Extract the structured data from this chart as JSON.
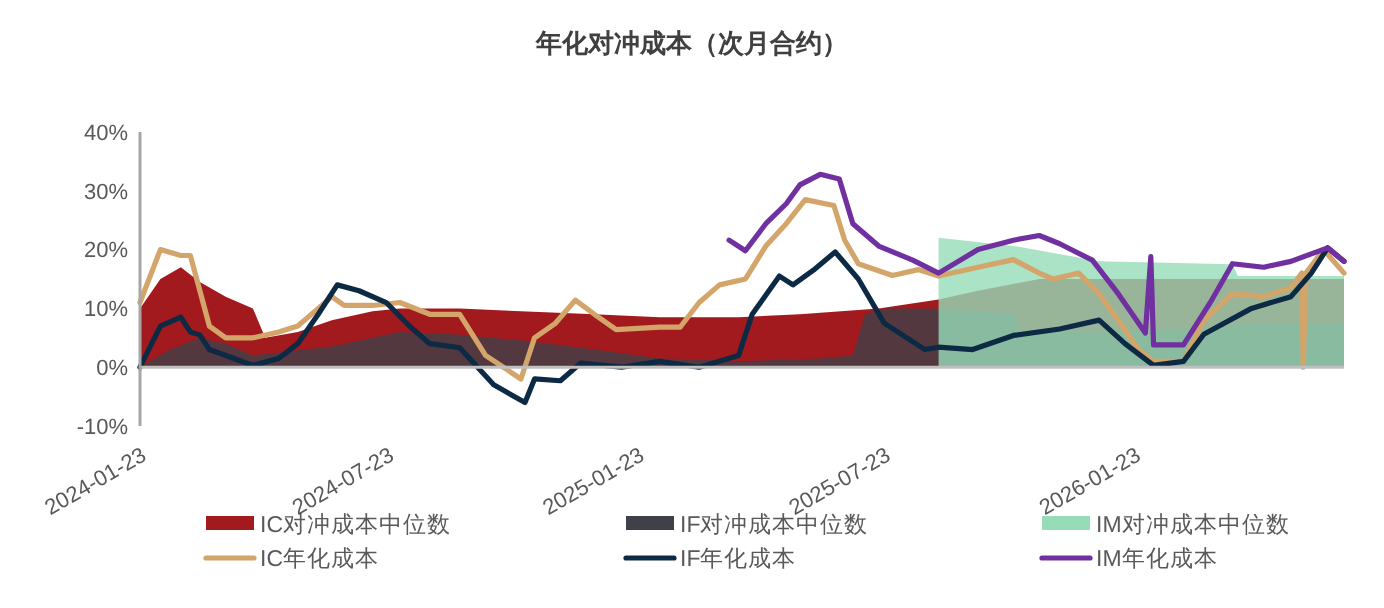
{
  "chart_data": {
    "type": "line",
    "title": "年化对冲成本（次月合约）",
    "xlim": [
      "2024-01-23",
      "2026-06-26"
    ],
    "xticks": [
      "2024-01-23",
      "2024-07-23",
      "2025-01-23",
      "2025-07-23",
      "2026-01-23"
    ],
    "ylim": [
      -10,
      40
    ],
    "yticks": [
      {
        "value": -10,
        "label": "-10%"
      },
      {
        "value": 0,
        "label": "0%"
      },
      {
        "value": 10,
        "label": "10%"
      },
      {
        "value": 20,
        "label": "20%"
      },
      {
        "value": 30,
        "label": "30%"
      },
      {
        "value": 40,
        "label": "40%"
      }
    ],
    "legend": "bottom",
    "line_style": "solid",
    "marker": "none",
    "series": [
      {
        "name": "IC对冲成本中位数",
        "type": "area",
        "color": "#a31a1e",
        "x": [
          "2024-01-23",
          "2024-02-07",
          "2024-02-22",
          "2024-03-07",
          "2024-03-26",
          "2024-04-15",
          "2024-04-24",
          "2024-05-18",
          "2024-06-12",
          "2024-07-12",
          "2024-08-01",
          "2024-09-14",
          "2024-10-29",
          "2024-12-22",
          "2025-02-08",
          "2025-04-07",
          "2025-05-22",
          "2025-07-19",
          "2025-09-01",
          "2025-09-30",
          "2025-11-14",
          "2026-01-11",
          "2026-03-11",
          "2026-05-23",
          "2026-06-26"
        ],
        "values": [
          10,
          15,
          17,
          14.5,
          12,
          10,
          5,
          6,
          8,
          9.5,
          10,
          10,
          9.5,
          9,
          8.5,
          8.5,
          9,
          10,
          11.5,
          13,
          15,
          15,
          15,
          15,
          15
        ]
      },
      {
        "name": "IF对冲成本中位数",
        "type": "area",
        "color": "#3f4048",
        "x": [
          "2024-01-23",
          "2024-02-14",
          "2024-03-07",
          "2024-03-26",
          "2024-04-15",
          "2024-05-04",
          "2024-06-12",
          "2024-07-12",
          "2024-08-01",
          "2024-09-14",
          "2024-11-01",
          "2024-12-22",
          "2025-02-08",
          "2025-04-07",
          "2025-06-06",
          "2025-06-30",
          "2025-07-09",
          "2025-07-23",
          "2025-09-01",
          "2025-10-26",
          "2025-10-30",
          "2025-12-28",
          "2026-03-11",
          "2026-04-19",
          "2026-06-26"
        ],
        "values": [
          0,
          3,
          5,
          4,
          2,
          2.5,
          3.5,
          5,
          6,
          5.5,
          4.5,
          3,
          1.5,
          1,
          1.5,
          2,
          9,
          10,
          10,
          9,
          6,
          6,
          6.5,
          7.5,
          7.5
        ]
      },
      {
        "name": "IM对冲成本中位数",
        "type": "area",
        "color": "#96dcb8",
        "x": [
          "2025-09-01",
          "2025-10-30",
          "2025-12-28",
          "2026-04-05",
          "2026-04-09",
          "2026-06-26"
        ],
        "values": [
          22,
          20.5,
          18,
          17.5,
          15.5,
          15.5
        ]
      },
      {
        "name": "IC年化成本",
        "color": "#d4a56a",
        "x": [
          "2024-01-23",
          "2024-02-07",
          "2024-02-22",
          "2024-02-29",
          "2024-03-07",
          "2024-03-14",
          "2024-03-26",
          "2024-04-15",
          "2024-05-04",
          "2024-05-18",
          "2024-06-02",
          "2024-06-12",
          "2024-06-21",
          "2024-07-12",
          "2024-08-01",
          "2024-08-23",
          "2024-09-14",
          "2024-10-03",
          "2024-10-29",
          "2024-11-08",
          "2024-11-23",
          "2024-12-08",
          "2024-12-22",
          "2025-01-07",
          "2025-02-08",
          "2025-02-23",
          "2025-03-09",
          "2025-03-24",
          "2025-04-12",
          "2025-04-27",
          "2025-05-12",
          "2025-05-26",
          "2025-06-16",
          "2025-06-24",
          "2025-07-04",
          "2025-07-29",
          "2025-08-17",
          "2025-09-01",
          "2025-09-30",
          "2025-10-26",
          "2025-11-14",
          "2025-11-24",
          "2025-12-13",
          "2025-12-28",
          "2026-01-11",
          "2026-01-26",
          "2026-02-06",
          "2026-02-28",
          "2026-03-15",
          "2026-04-05",
          "2026-04-28",
          "2026-05-18",
          "2026-05-26",
          "2026-05-27",
          "2026-05-29",
          "2026-06-11",
          "2026-06-26"
        ],
        "values": [
          11,
          20,
          19,
          19,
          13,
          7,
          5,
          5,
          6,
          7,
          10,
          12,
          10.5,
          10.5,
          11,
          9,
          9,
          2,
          -2,
          5,
          7.4,
          11.4,
          9,
          6.4,
          6.8,
          6.8,
          11,
          14,
          15,
          20.6,
          24.4,
          28.5,
          27.5,
          21.6,
          17.6,
          15.6,
          16.6,
          15.5,
          17,
          18.3,
          16,
          15,
          16,
          12.5,
          8,
          3,
          1,
          1,
          8,
          12.5,
          12,
          13.5,
          16,
          0,
          16,
          20,
          16
        ]
      },
      {
        "name": "IF年化成本",
        "color": "#0d2a45",
        "x": [
          "2024-01-23",
          "2024-02-07",
          "2024-02-22",
          "2024-02-29",
          "2024-03-07",
          "2024-03-14",
          "2024-03-26",
          "2024-04-15",
          "2024-05-04",
          "2024-05-18",
          "2024-06-02",
          "2024-06-16",
          "2024-07-02",
          "2024-07-22",
          "2024-08-08",
          "2024-08-23",
          "2024-09-14",
          "2024-10-09",
          "2024-11-01",
          "2024-11-08",
          "2024-11-27",
          "2024-12-12",
          "2025-01-11",
          "2025-02-08",
          "2025-03-09",
          "2025-04-07",
          "2025-04-17",
          "2025-05-07",
          "2025-05-17",
          "2025-06-01",
          "2025-06-17",
          "2025-07-04",
          "2025-07-23",
          "2025-08-22",
          "2025-09-01",
          "2025-09-26",
          "2025-10-26",
          "2025-11-29",
          "2025-12-28",
          "2026-01-16",
          "2026-02-06",
          "2026-02-28",
          "2026-03-15",
          "2026-04-19",
          "2026-05-18",
          "2026-06-02",
          "2026-06-14",
          "2026-06-26"
        ],
        "values": [
          0,
          7,
          8.5,
          6,
          5.5,
          3,
          2,
          0.3,
          1.5,
          4,
          9,
          14,
          13,
          11,
          7,
          4,
          3.3,
          -3,
          -6,
          -2,
          -2.3,
          0.7,
          0,
          1,
          0,
          2,
          9,
          15.5,
          14,
          16.5,
          19.6,
          15,
          7.5,
          3,
          3.4,
          3,
          5.4,
          6.5,
          8,
          4,
          0.3,
          1,
          5.6,
          10,
          12,
          16,
          20.3,
          18
        ]
      },
      {
        "name": "IM年化成本",
        "color": "#7030a0",
        "x": [
          "2025-03-31",
          "2025-04-12",
          "2025-04-27",
          "2025-05-12",
          "2025-05-22",
          "2025-06-06",
          "2025-06-20",
          "2025-06-30",
          "2025-07-19",
          "2025-08-13",
          "2025-09-01",
          "2025-09-30",
          "2025-10-26",
          "2025-11-14",
          "2025-11-29",
          "2025-12-23",
          "2026-01-11",
          "2026-01-31",
          "2026-02-04",
          "2026-02-06",
          "2026-02-28",
          "2026-03-21",
          "2026-04-05",
          "2026-04-28",
          "2026-05-18",
          "2026-06-14",
          "2026-06-26"
        ],
        "values": [
          21.6,
          19.8,
          24.4,
          27.8,
          31,
          32.8,
          32,
          24.4,
          20.6,
          18.2,
          16,
          20,
          21.6,
          22.4,
          21,
          18.2,
          12.5,
          5.8,
          18.8,
          3.8,
          3.8,
          11.5,
          17.6,
          17,
          18,
          20.3,
          18
        ]
      }
    ]
  }
}
